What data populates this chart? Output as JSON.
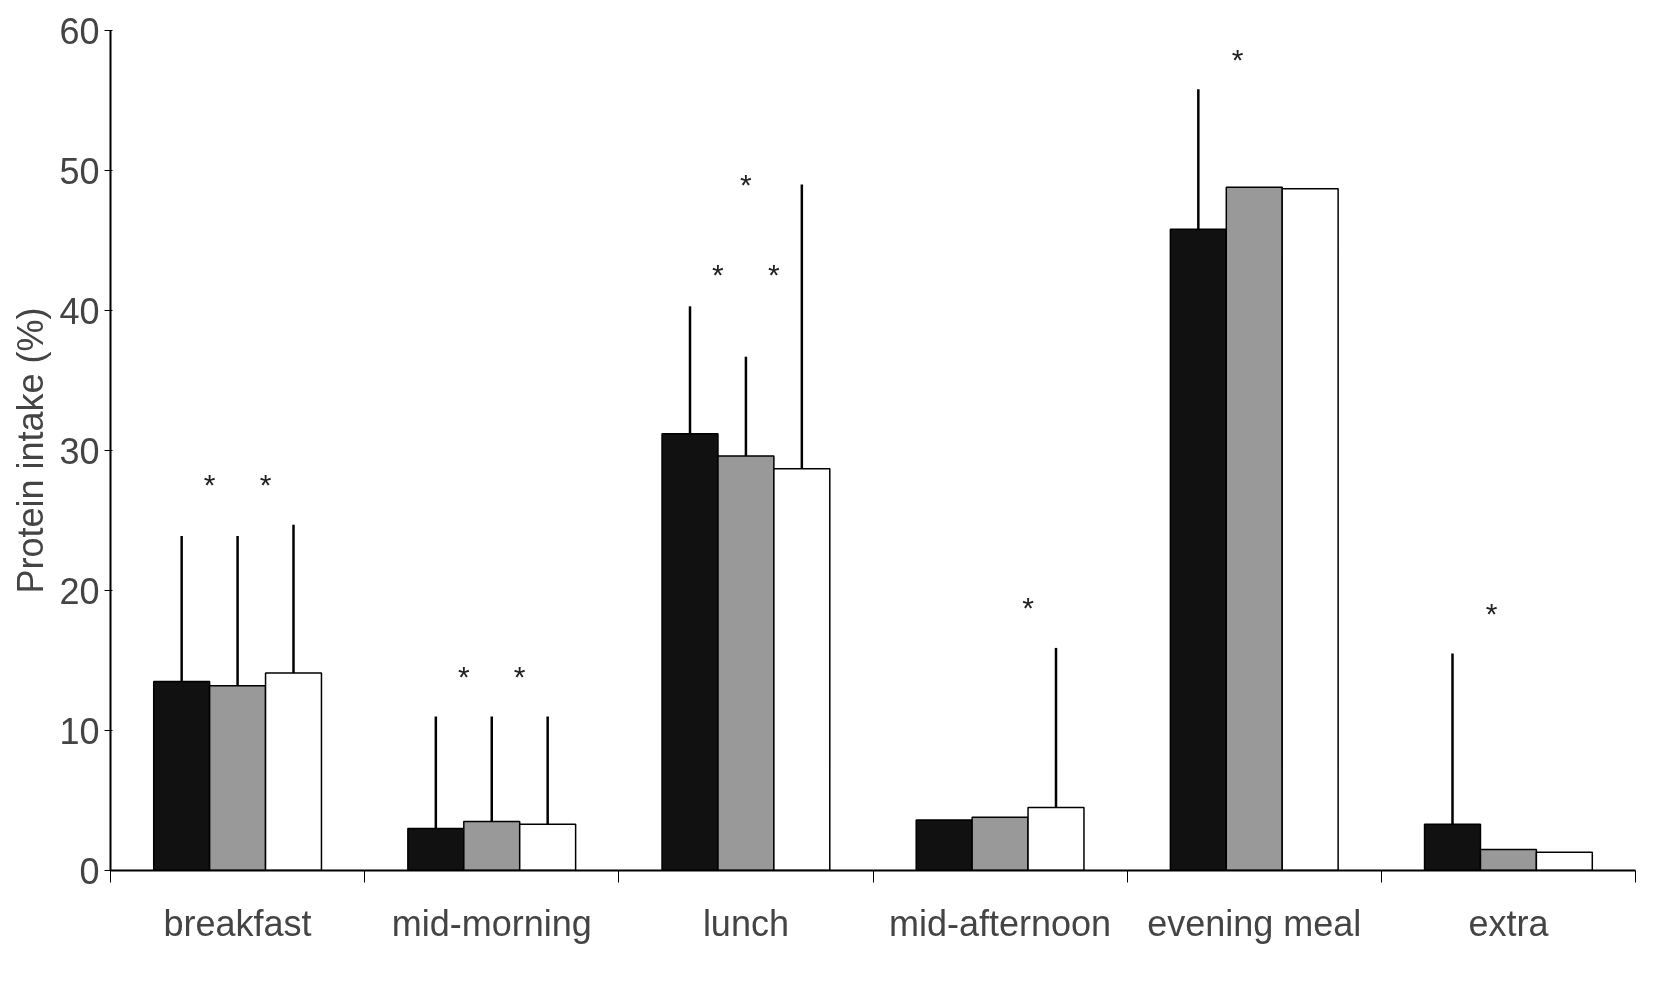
{
  "chart_data": {
    "type": "bar",
    "ylabel": "Protein intake (%)",
    "categories": [
      "breakfast",
      "mid-morning",
      "lunch",
      "mid-afternoon",
      "evening meal",
      "extra"
    ],
    "series": [
      {
        "color": "#111111",
        "values": [
          13.5,
          3.0,
          31.2,
          3.6,
          45.8,
          3.3
        ],
        "errors": [
          [
            13.5,
            23.9
          ],
          [
            3.0,
            11.0
          ],
          [
            31.2,
            40.3
          ],
          null,
          [
            45.8,
            55.8
          ],
          [
            3.3,
            15.5
          ]
        ]
      },
      {
        "color": "#999999",
        "values": [
          13.2,
          3.5,
          29.6,
          3.8,
          48.8,
          1.5
        ],
        "errors": [
          [
            13.2,
            23.9
          ],
          [
            3.5,
            11.0
          ],
          [
            29.6,
            36.7
          ],
          null,
          null,
          null
        ]
      },
      {
        "color": "#ffffff",
        "values": [
          14.1,
          3.3,
          28.7,
          4.5,
          48.7,
          1.3
        ],
        "errors": [
          [
            14.1,
            24.7
          ],
          [
            3.3,
            11.0
          ],
          [
            28.7,
            49.0
          ],
          [
            4.5,
            15.9
          ],
          null,
          null
        ]
      }
    ],
    "ylim": [
      0,
      60
    ],
    "yticks": [
      0,
      10,
      20,
      30,
      40,
      50,
      60
    ],
    "grid": false,
    "annotations": [
      "*",
      "*",
      "*",
      "*",
      "*",
      "*",
      "*",
      "*",
      "*",
      "*"
    ]
  }
}
